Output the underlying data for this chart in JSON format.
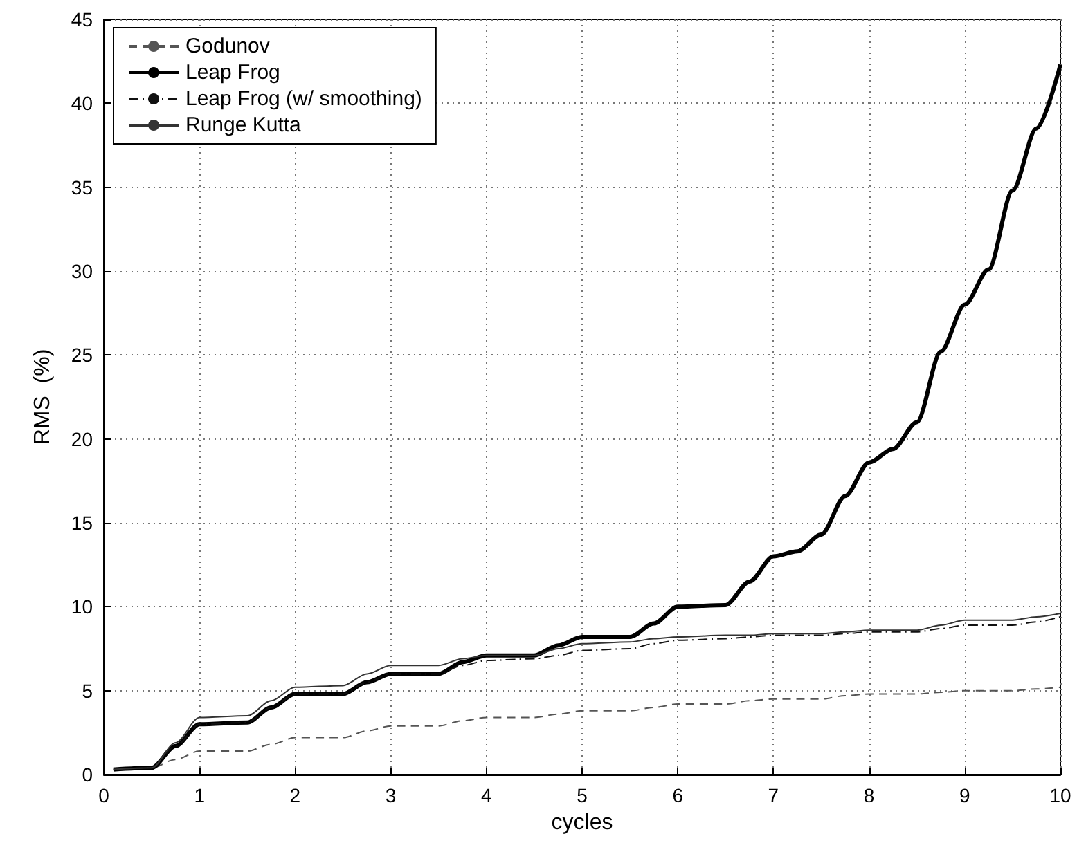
{
  "chart_data": {
    "type": "line",
    "xlabel": "cycles",
    "ylabel": "RMS  (%)",
    "x": [
      0.1,
      0.5,
      0.75,
      1,
      1.5,
      1.75,
      2,
      2.5,
      2.75,
      3,
      3.5,
      3.75,
      4,
      4.5,
      4.75,
      5,
      5.5,
      5.75,
      6,
      6.5,
      6.75,
      7,
      7.25,
      7.5,
      7.75,
      8,
      8.25,
      8.5,
      8.75,
      9,
      9.25,
      9.5,
      9.75,
      10
    ],
    "series": [
      {
        "name": "Godunov",
        "color": "#555555",
        "line_style": "dashed",
        "values": [
          0.3,
          0.4,
          0.9,
          1.4,
          1.4,
          1.8,
          2.2,
          2.2,
          2.6,
          2.9,
          2.9,
          3.2,
          3.4,
          3.4,
          3.6,
          3.8,
          3.8,
          4.0,
          4.2,
          4.2,
          4.4,
          4.5,
          4.5,
          4.5,
          4.7,
          4.8,
          4.8,
          4.8,
          4.9,
          5.0,
          5.0,
          5.0,
          5.1,
          5.2
        ]
      },
      {
        "name": "Leap Frog",
        "color": "#000000",
        "line_style": "solid",
        "values": [
          0.3,
          0.4,
          1.7,
          3.0,
          3.1,
          4.0,
          4.8,
          4.8,
          5.5,
          6.0,
          6.0,
          6.7,
          7.1,
          7.1,
          7.7,
          8.2,
          8.2,
          9.0,
          10.0,
          10.1,
          11.5,
          13.0,
          13.3,
          14.3,
          16.6,
          18.6,
          19.4,
          21.0,
          25.2,
          28.0,
          30.1,
          34.8,
          38.5,
          42.3
        ]
      },
      {
        "name": "Leap Frog (w/ smoothing)",
        "color": "#111111",
        "line_style": "dashdot",
        "values": [
          0.3,
          0.4,
          1.7,
          3.0,
          3.1,
          4.0,
          4.8,
          4.8,
          5.5,
          6.0,
          6.0,
          6.5,
          6.8,
          6.9,
          7.1,
          7.4,
          7.5,
          7.8,
          8.0,
          8.1,
          8.2,
          8.3,
          8.3,
          8.3,
          8.4,
          8.5,
          8.5,
          8.5,
          8.7,
          8.9,
          8.9,
          8.9,
          9.1,
          9.4
        ]
      },
      {
        "name": "Runge Kutta",
        "color": "#333333",
        "line_style": "solid",
        "values": [
          0.3,
          0.4,
          1.9,
          3.4,
          3.5,
          4.4,
          5.2,
          5.3,
          6.0,
          6.5,
          6.5,
          6.9,
          7.1,
          7.1,
          7.5,
          7.8,
          7.9,
          8.1,
          8.2,
          8.3,
          8.3,
          8.4,
          8.4,
          8.4,
          8.5,
          8.6,
          8.6,
          8.6,
          8.9,
          9.2,
          9.2,
          9.2,
          9.4,
          9.6
        ]
      }
    ],
    "xlim": [
      0,
      10
    ],
    "xticks": [
      0,
      1,
      2,
      3,
      4,
      5,
      6,
      7,
      8,
      9,
      10
    ],
    "ylim": [
      0,
      45
    ],
    "yticks": [
      0,
      5,
      10,
      15,
      20,
      25,
      30,
      35,
      40,
      45
    ],
    "grid": true,
    "legend": "top left",
    "marker": "none"
  }
}
